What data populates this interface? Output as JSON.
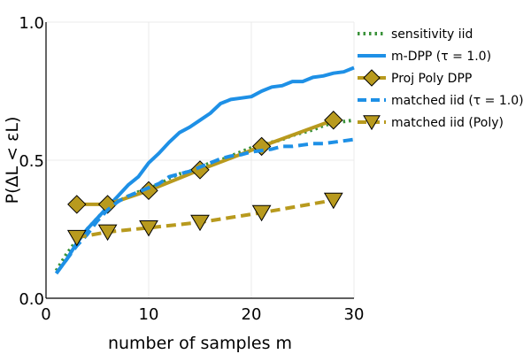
{
  "chart_data": {
    "type": "line",
    "title": "",
    "xlabel": "number of samples m",
    "ylabel": "P(ΔL < εL)",
    "xlim": [
      0,
      30
    ],
    "ylim": [
      0,
      1
    ],
    "x_ticks": [
      0,
      10,
      20,
      30
    ],
    "x_tick_labels": [
      "0",
      "10",
      "20",
      "30"
    ],
    "y_ticks": [
      0,
      0.5,
      1
    ],
    "y_tick_labels": [
      "0.0",
      "0.5",
      "1.0"
    ],
    "grid": true,
    "legend_position": "top-right",
    "series": [
      {
        "name": "sensitivity iid",
        "color": "#3a923a",
        "style": "dotted",
        "marker": "none",
        "x": [
          1,
          2,
          3,
          4,
          5,
          6,
          7,
          8,
          9,
          10,
          11,
          12,
          13,
          14,
          15,
          16,
          17,
          18,
          19,
          20,
          21,
          22,
          23,
          24,
          25,
          26,
          27,
          28,
          29,
          30
        ],
        "y": [
          0.1,
          0.16,
          0.21,
          0.25,
          0.29,
          0.33,
          0.35,
          0.37,
          0.385,
          0.4,
          0.41,
          0.435,
          0.45,
          0.46,
          0.475,
          0.49,
          0.5,
          0.515,
          0.53,
          0.545,
          0.555,
          0.565,
          0.575,
          0.59,
          0.6,
          0.61,
          0.625,
          0.635,
          0.64,
          0.645
        ]
      },
      {
        "name": "m-DPP (τ = 1.0)",
        "color": "#1e90e6",
        "style": "solid",
        "marker": "none",
        "x": [
          1,
          2,
          3,
          4,
          5,
          6,
          7,
          8,
          9,
          10,
          11,
          12,
          13,
          14,
          15,
          16,
          17,
          18,
          19,
          20,
          21,
          22,
          23,
          24,
          25,
          26,
          27,
          28,
          29,
          30
        ],
        "y": [
          0.09,
          0.14,
          0.2,
          0.25,
          0.29,
          0.33,
          0.37,
          0.41,
          0.44,
          0.49,
          0.525,
          0.565,
          0.6,
          0.62,
          0.645,
          0.67,
          0.705,
          0.72,
          0.725,
          0.73,
          0.75,
          0.765,
          0.77,
          0.785,
          0.785,
          0.8,
          0.805,
          0.815,
          0.82,
          0.835
        ]
      },
      {
        "name": "Proj Poly DPP",
        "color": "#b89a1e",
        "style": "solid",
        "marker": "diamond",
        "x": [
          3,
          6,
          10,
          15,
          21,
          28
        ],
        "y": [
          0.34,
          0.34,
          0.39,
          0.465,
          0.55,
          0.645
        ]
      },
      {
        "name": "matched iid (τ = 1.0)",
        "color": "#1e90e6",
        "style": "dashed",
        "marker": "none",
        "x": [
          1,
          2,
          3,
          4,
          5,
          6,
          7,
          8,
          9,
          10,
          11,
          12,
          13,
          14,
          15,
          16,
          17,
          18,
          19,
          20,
          21,
          22,
          23,
          24,
          25,
          26,
          27,
          28,
          29,
          30
        ],
        "y": [
          0.09,
          0.14,
          0.19,
          0.23,
          0.28,
          0.32,
          0.35,
          0.37,
          0.385,
          0.4,
          0.415,
          0.44,
          0.45,
          0.46,
          0.475,
          0.49,
          0.505,
          0.515,
          0.52,
          0.53,
          0.535,
          0.54,
          0.55,
          0.55,
          0.555,
          0.56,
          0.56,
          0.565,
          0.57,
          0.575
        ]
      },
      {
        "name": "matched iid (Poly)",
        "color": "#b89a1e",
        "style": "dashed",
        "marker": "triangle-down",
        "x": [
          3,
          6,
          10,
          15,
          21,
          28
        ],
        "y": [
          0.22,
          0.24,
          0.255,
          0.275,
          0.31,
          0.355
        ]
      }
    ]
  }
}
